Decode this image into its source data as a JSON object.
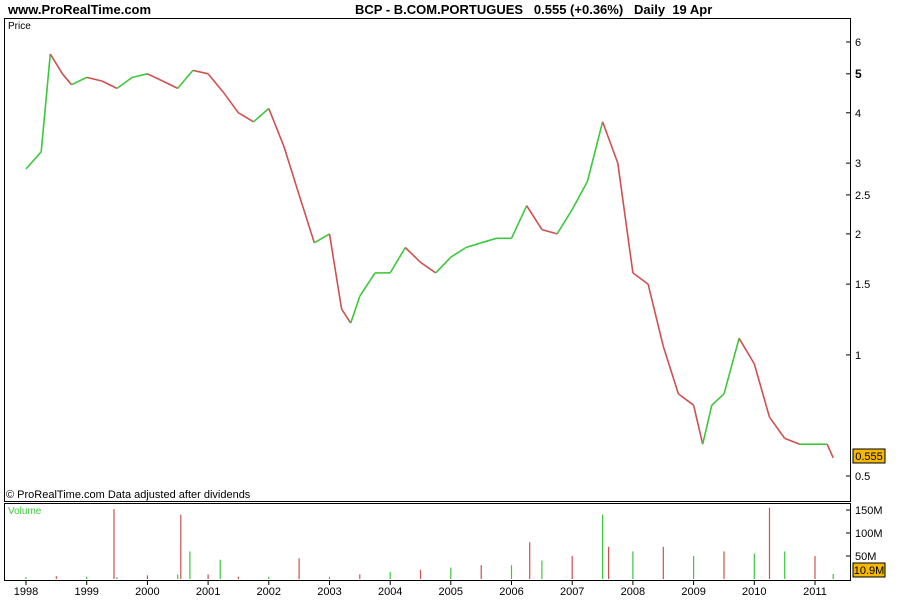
{
  "header": {
    "site": "www.ProRealTime.com",
    "title": "BCP - B.COM.PORTUGUES",
    "quote": "0.555 (+0.36%)",
    "period": "Daily",
    "date": "19 Apr"
  },
  "price_panel": {
    "label": "Price",
    "footnote": "© ProRealTime.com  Data adjusted after dividends",
    "last_value": "0.555"
  },
  "volume_panel": {
    "label": "Volume",
    "last_value": "10.9M"
  },
  "colors": {
    "up": "#3cc83c",
    "down": "#d05050",
    "axis": "#000000",
    "badge": "#f5b800",
    "volume_label": "#3cc83c"
  },
  "chart_data": [
    {
      "type": "line",
      "title": "BCP - B.COM.PORTUGUES",
      "ylabel": "Price",
      "yscale": "log",
      "ylim": [
        0.45,
        6.5
      ],
      "y_ticks": [
        0.5,
        1,
        1.5,
        2,
        2.5,
        3,
        4,
        5,
        6
      ],
      "x_ticks": [
        "1998",
        "1999",
        "2000",
        "2001",
        "2002",
        "2003",
        "2004",
        "2005",
        "2006",
        "2007",
        "2008",
        "2009",
        "2010",
        "2011"
      ],
      "series": [
        {
          "x": [
            1998.0,
            1998.25,
            1998.4,
            1998.6,
            1998.75,
            1999.0,
            1999.25,
            1999.5,
            1999.75,
            2000.0,
            2000.25,
            2000.5,
            2000.75,
            2001.0,
            2001.25,
            2001.5,
            2001.75,
            2002.0,
            2002.25,
            2002.5,
            2002.75,
            2003.0,
            2003.2,
            2003.35,
            2003.5,
            2003.75,
            2004.0,
            2004.25,
            2004.5,
            2004.75,
            2005.0,
            2005.25,
            2005.5,
            2005.75,
            2006.0,
            2006.25,
            2006.5,
            2006.75,
            2007.0,
            2007.25,
            2007.5,
            2007.75,
            2008.0,
            2008.25,
            2008.5,
            2008.75,
            2009.0,
            2009.15,
            2009.3,
            2009.5,
            2009.75,
            2010.0,
            2010.25,
            2010.5,
            2010.75,
            2011.0,
            2011.2,
            2011.3
          ],
          "y": [
            2.9,
            3.2,
            5.6,
            5.0,
            4.7,
            4.9,
            4.8,
            4.6,
            4.9,
            5.0,
            4.8,
            4.6,
            5.1,
            5.0,
            4.5,
            4.0,
            3.8,
            4.1,
            3.3,
            2.5,
            1.9,
            2.0,
            1.3,
            1.2,
            1.4,
            1.6,
            1.6,
            1.85,
            1.7,
            1.6,
            1.75,
            1.85,
            1.9,
            1.95,
            1.95,
            2.35,
            2.05,
            2.0,
            2.3,
            2.7,
            3.8,
            3.0,
            1.6,
            1.5,
            1.05,
            0.8,
            0.75,
            0.6,
            0.75,
            0.8,
            1.1,
            0.95,
            0.7,
            0.62,
            0.6,
            0.6,
            0.6,
            0.555
          ]
        }
      ]
    },
    {
      "type": "bar",
      "ylabel": "Volume",
      "y_ticks": [
        "50M",
        "100M",
        "150M"
      ],
      "ylim": [
        0,
        165
      ],
      "series": [
        {
          "x": [
            1998.0,
            1998.5,
            1999.0,
            1999.45,
            1999.5,
            2000.0,
            2000.5,
            2000.55,
            2000.7,
            2001.0,
            2001.2,
            2001.5,
            2002.0,
            2002.5,
            2003.0,
            2003.5,
            2004.0,
            2004.5,
            2005.0,
            2005.5,
            2006.0,
            2006.3,
            2006.5,
            2007.0,
            2007.5,
            2007.6,
            2008.0,
            2008.5,
            2009.0,
            2009.5,
            2010.0,
            2010.25,
            2010.5,
            2011.0,
            2011.3
          ],
          "y": [
            4,
            6,
            5,
            152,
            4,
            8,
            10,
            140,
            60,
            10,
            42,
            5,
            5,
            45,
            5,
            10,
            15,
            20,
            25,
            30,
            30,
            80,
            40,
            50,
            140,
            70,
            60,
            70,
            50,
            60,
            55,
            155,
            60,
            50,
            10.9
          ]
        }
      ]
    }
  ]
}
